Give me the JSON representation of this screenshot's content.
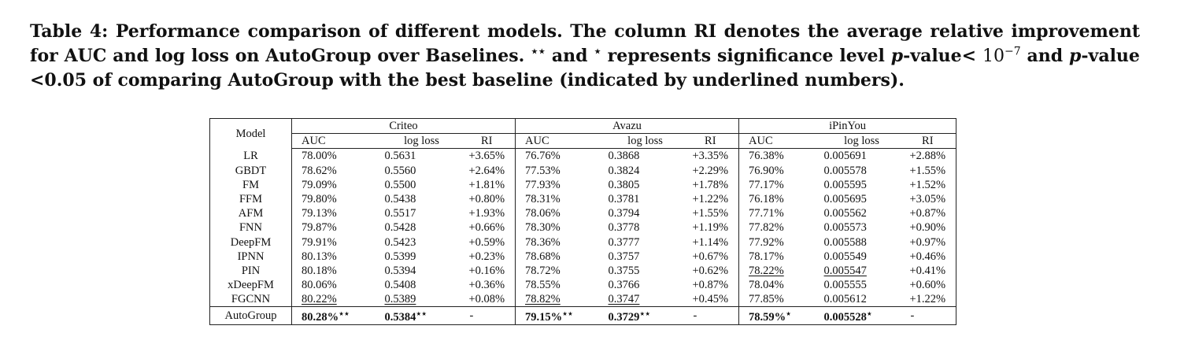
{
  "caption": {
    "label": "Table 4:",
    "part1": "Performance comparison of different models. The column RI denotes the average relative improvement for AUC and log loss on AutoGroup over Baselines.",
    "stars_double": "⋆⋆",
    "and": "and",
    "star_single": "⋆",
    "part2": "represents significance level",
    "p": "p",
    "value_lt": "-value<",
    "ten": "10",
    "exp": "−7",
    "and2": "and",
    "p2": "p",
    "part3": "-value <0.05 of comparing AutoGroup with the best baseline (indicated by underlined numbers)."
  },
  "table": {
    "model_header": "Model",
    "groups": [
      "Criteo",
      "Avazu",
      "iPinYou"
    ],
    "sub_headers": [
      "AUC",
      "log loss",
      "RI"
    ],
    "rows": [
      {
        "model": "LR",
        "cells": [
          "78.00%",
          "0.5631",
          "+3.65%",
          "76.76%",
          "0.3868",
          "+3.35%",
          "76.38%",
          "0.005691",
          "+2.88%"
        ]
      },
      {
        "model": "GBDT",
        "cells": [
          "78.62%",
          "0.5560",
          "+2.64%",
          "77.53%",
          "0.3824",
          "+2.29%",
          "76.90%",
          "0.005578",
          "+1.55%"
        ]
      },
      {
        "model": "FM",
        "cells": [
          "79.09%",
          "0.5500",
          "+1.81%",
          "77.93%",
          "0.3805",
          "+1.78%",
          "77.17%",
          "0.005595",
          "+1.52%"
        ]
      },
      {
        "model": "FFM",
        "cells": [
          "79.80%",
          "0.5438",
          "+0.80%",
          "78.31%",
          "0.3781",
          "+1.22%",
          "76.18%",
          "0.005695",
          "+3.05%"
        ]
      },
      {
        "model": "AFM",
        "cells": [
          "79.13%",
          "0.5517",
          "+1.93%",
          "78.06%",
          "0.3794",
          "+1.55%",
          "77.71%",
          "0.005562",
          "+0.87%"
        ]
      },
      {
        "model": "FNN",
        "cells": [
          "79.87%",
          "0.5428",
          "+0.66%",
          "78.30%",
          "0.3778",
          "+1.19%",
          "77.82%",
          "0.005573",
          "+0.90%"
        ]
      },
      {
        "model": "DeepFM",
        "cells": [
          "79.91%",
          "0.5423",
          "+0.59%",
          "78.36%",
          "0.3777",
          "+1.14%",
          "77.92%",
          "0.005588",
          "+0.97%"
        ]
      },
      {
        "model": "IPNN",
        "cells": [
          "80.13%",
          "0.5399",
          "+0.23%",
          "78.68%",
          "0.3757",
          "+0.67%",
          "78.17%",
          "0.005549",
          "+0.46%"
        ]
      },
      {
        "model": "PIN",
        "cells": [
          "80.18%",
          "0.5394",
          "+0.16%",
          "78.72%",
          "0.3755",
          "+0.62%",
          "78.22%",
          "0.005547",
          "+0.41%"
        ],
        "underline": [
          6,
          7
        ]
      },
      {
        "model": "xDeepFM",
        "cells": [
          "80.06%",
          "0.5408",
          "+0.36%",
          "78.55%",
          "0.3766",
          "+0.87%",
          "78.04%",
          "0.005555",
          "+0.60%"
        ]
      },
      {
        "model": "FGCNN",
        "cells": [
          "80.22%",
          "0.5389",
          "+0.08%",
          "78.82%",
          "0.3747",
          "+0.45%",
          "77.85%",
          "0.005612",
          "+1.22%"
        ],
        "underline": [
          0,
          1,
          3,
          4
        ]
      }
    ],
    "final": {
      "model": "AutoGroup",
      "cells": [
        "80.28%",
        "0.5384",
        "-",
        "79.15%",
        "0.3729",
        "-",
        "78.59%",
        "0.005528",
        "-"
      ],
      "marks": [
        "⋆⋆",
        "⋆⋆",
        "",
        "⋆⋆",
        "⋆⋆",
        "",
        "⋆",
        "⋆",
        ""
      ]
    }
  }
}
